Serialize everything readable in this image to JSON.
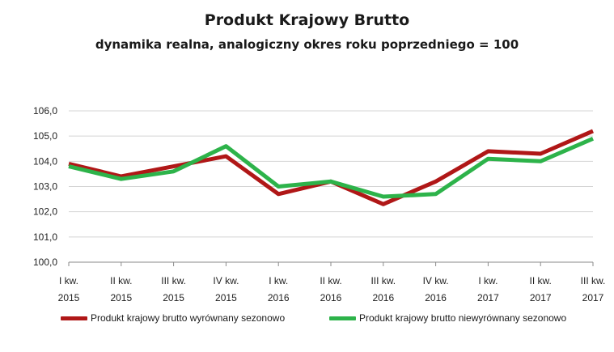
{
  "chart_data": {
    "type": "line",
    "title": "Produkt Krajowy Brutto",
    "subtitle": "dynamika realna, analogiczny okres roku poprzedniego = 100",
    "categories": [
      [
        "I kw.",
        "2015"
      ],
      [
        "II kw.",
        "2015"
      ],
      [
        "III kw.",
        "2015"
      ],
      [
        "IV kw.",
        "2015"
      ],
      [
        "I kw.",
        "2016"
      ],
      [
        "II kw.",
        "2016"
      ],
      [
        "III kw.",
        "2016"
      ],
      [
        "IV kw.",
        "2016"
      ],
      [
        "I kw.",
        "2017"
      ],
      [
        "II kw.",
        "2017"
      ],
      [
        "III kw.",
        "2017"
      ]
    ],
    "ylim": [
      100.0,
      106.0
    ],
    "yticks": [
      "100,0",
      "101,0",
      "102,0",
      "103,0",
      "104,0",
      "105,0",
      "106,0"
    ],
    "grid": true,
    "legend_position": "bottom",
    "series": [
      {
        "name": "Produkt krajowy brutto wyrównany sezonowo",
        "color": "#b01717",
        "values": [
          103.9,
          103.4,
          103.8,
          104.2,
          102.7,
          103.2,
          102.3,
          103.2,
          104.4,
          104.3,
          105.2
        ]
      },
      {
        "name": "Produkt krajowy brutto niewyrównany sezonowo",
        "color": "#2db34a",
        "values": [
          103.8,
          103.3,
          103.6,
          104.6,
          103.0,
          103.2,
          102.6,
          102.7,
          104.1,
          104.0,
          104.9
        ]
      }
    ]
  }
}
